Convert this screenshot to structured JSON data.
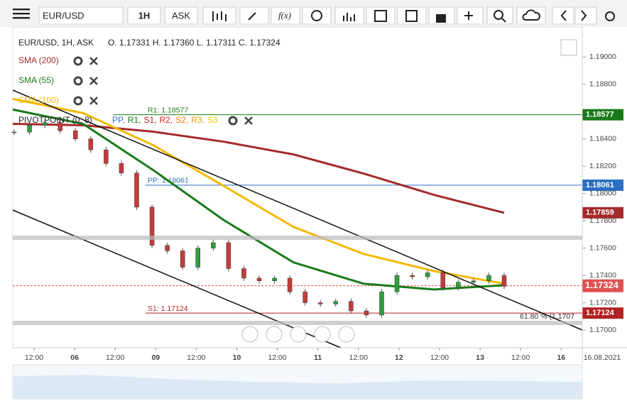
{
  "toolbar": {
    "symbol": "EUR/USD",
    "interval": "1H",
    "side": "ASK",
    "fx": "f(x)"
  },
  "legend": {
    "instrument": "EUR/USD, 1H, ASK",
    "ohlc": "O. 1.17331 H. 1.17360 L. 1.17311 C. 1.17324",
    "indicators": [
      {
        "name": "SMA (200)",
        "color": "#a52a2a"
      },
      {
        "name": "SMA (55)",
        "color": "#1a7a1a"
      },
      {
        "name": "SMA (100)",
        "color": "#f5b800"
      }
    ],
    "pivot": {
      "name": "PIVOTPOINT (0, 8)",
      "levels": [
        {
          "label": "PP,",
          "color": "#2b6fc4"
        },
        {
          "label": "R1,",
          "color": "#1a7a1a"
        },
        {
          "label": "S1,",
          "color": "#b22222"
        },
        {
          "label": "R2,",
          "color": "#d22"
        },
        {
          "label": "S2,",
          "color": "#f08000"
        },
        {
          "label": "R3,",
          "color": "#e0a000"
        },
        {
          "label": "S3",
          "color": "#e8c800"
        }
      ]
    }
  },
  "chart_data": {
    "type": "candlestick",
    "ylim": [
      1.1687,
      1.1922
    ],
    "yticks": [
      {
        "value": 1.19,
        "label": "1.19000"
      },
      {
        "value": 1.188,
        "label": "1.18800"
      },
      {
        "value": 1.184,
        "label": "1.18400"
      },
      {
        "value": 1.182,
        "label": "1.18200"
      },
      {
        "value": 1.18,
        "label": "1.18000"
      },
      {
        "value": 1.178,
        "label": "1.17800"
      },
      {
        "value": 1.176,
        "label": "1.17600"
      },
      {
        "value": 1.174,
        "label": "1.17400"
      },
      {
        "value": 1.172,
        "label": "1.17200"
      },
      {
        "value": 1.17,
        "label": "1.17000"
      }
    ],
    "xticks": [
      "12:00",
      "06",
      "12:00",
      "09",
      "12:00",
      "10",
      "12:00",
      "11",
      "12:00",
      "12",
      "12:00",
      "13",
      "12:00",
      "16"
    ],
    "end_date": "16.08.2021",
    "close": [
      1.1845,
      1.185,
      1.1852,
      1.1846,
      1.184,
      1.1832,
      1.1822,
      1.1815,
      1.179,
      1.1762,
      1.1758,
      1.1746,
      1.176,
      1.1764,
      1.1745,
      1.1738,
      1.1736,
      1.1738,
      1.1728,
      1.172,
      1.1719,
      1.1721,
      1.1714,
      1.1711,
      1.1728,
      1.174,
      1.1739,
      1.1742,
      1.1731,
      1.1735,
      1.1736,
      1.174,
      1.1732
    ],
    "series": [
      {
        "name": "SMA (200)",
        "color": "#a52a2a",
        "values": [
          1.1851,
          1.185,
          1.18453,
          1.1838,
          1.18286,
          1.18146,
          1.1799,
          1.17859
        ]
      },
      {
        "name": "SMA (100)",
        "color": "#f5b800",
        "values": [
          1.18693,
          1.18589,
          1.18354,
          1.18057,
          1.17755,
          1.17557,
          1.17432,
          1.17339
        ]
      },
      {
        "name": "SMA (55)",
        "color": "#1a7a1a",
        "values": [
          1.18615,
          1.1851,
          1.18172,
          1.17807,
          1.17495,
          1.17339,
          1.17297,
          1.17328
        ]
      }
    ],
    "levels": [
      {
        "label": "R1: 1.18577",
        "value": 1.18577,
        "tag": "1.18577",
        "color": "#1a7a1a"
      },
      {
        "label": "PP: 1.18061",
        "value": 1.18061,
        "tag": "1.18061",
        "color": "#2b6fc4"
      },
      {
        "label": "S1: 1.17124",
        "value": 1.17124,
        "tag": "1.17124",
        "color": "#b22222"
      }
    ],
    "sma_tag": {
      "value": 1.17859,
      "tag": "1.17859",
      "color": "#a52a2a"
    },
    "price": {
      "value": 1.17324,
      "tag": "1.17324",
      "color": "#e05050"
    },
    "fib": "61.80 % (1.1707"
  }
}
